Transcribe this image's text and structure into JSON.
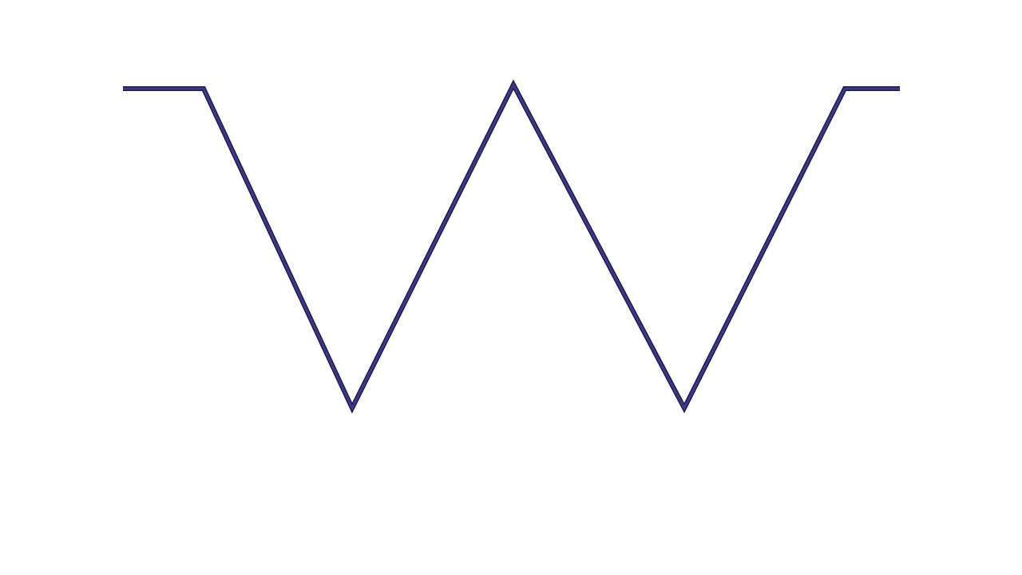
{
  "shape": {
    "kind": "w-zigzag-polyline",
    "colors": {
      "stroke_outer": "#1e1e3c",
      "stroke_inner": "#3b3799",
      "background": "#ffffff"
    }
  }
}
